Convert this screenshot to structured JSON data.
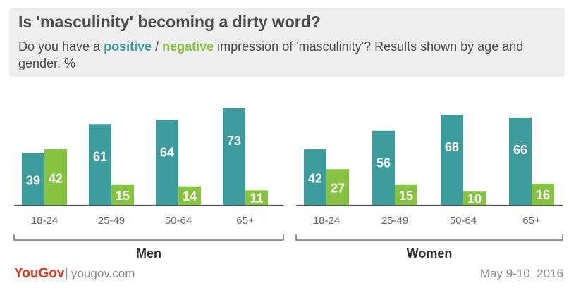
{
  "header": {
    "title": "Is 'masculinity' becoming a dirty word?",
    "subtitle_pre": "Do you have a ",
    "subtitle_pos": "positive",
    "subtitle_sep": " / ",
    "subtitle_neg": "negative",
    "subtitle_post": " impression of 'masculinity'? Results shown by age and gender. %"
  },
  "footer": {
    "brand": "YouGov",
    "separator": "|",
    "url": "yougov.com",
    "date": "May 9-10, 2016"
  },
  "colors": {
    "positive": "#3c9c9c",
    "negative": "#86c440",
    "axis": "#555555",
    "text": "#4a4a4a",
    "header_bg": "#ededed",
    "brand": "#e0371b"
  },
  "chart_data": [
    {
      "type": "bar",
      "title": "Men",
      "categories": [
        "18-24",
        "25-49",
        "50-64",
        "65+"
      ],
      "series": [
        {
          "name": "positive",
          "values": [
            39,
            61,
            64,
            73
          ]
        },
        {
          "name": "negative",
          "values": [
            42,
            15,
            14,
            11
          ]
        }
      ],
      "ylim": [
        0,
        80
      ],
      "grid": false,
      "legend": "in subtitle"
    },
    {
      "type": "bar",
      "title": "Women",
      "categories": [
        "18-24",
        "25-49",
        "50-64",
        "65+"
      ],
      "series": [
        {
          "name": "positive",
          "values": [
            42,
            56,
            68,
            66
          ]
        },
        {
          "name": "negative",
          "values": [
            27,
            15,
            10,
            16
          ]
        }
      ],
      "ylim": [
        0,
        80
      ],
      "grid": false,
      "legend": "in subtitle"
    }
  ]
}
